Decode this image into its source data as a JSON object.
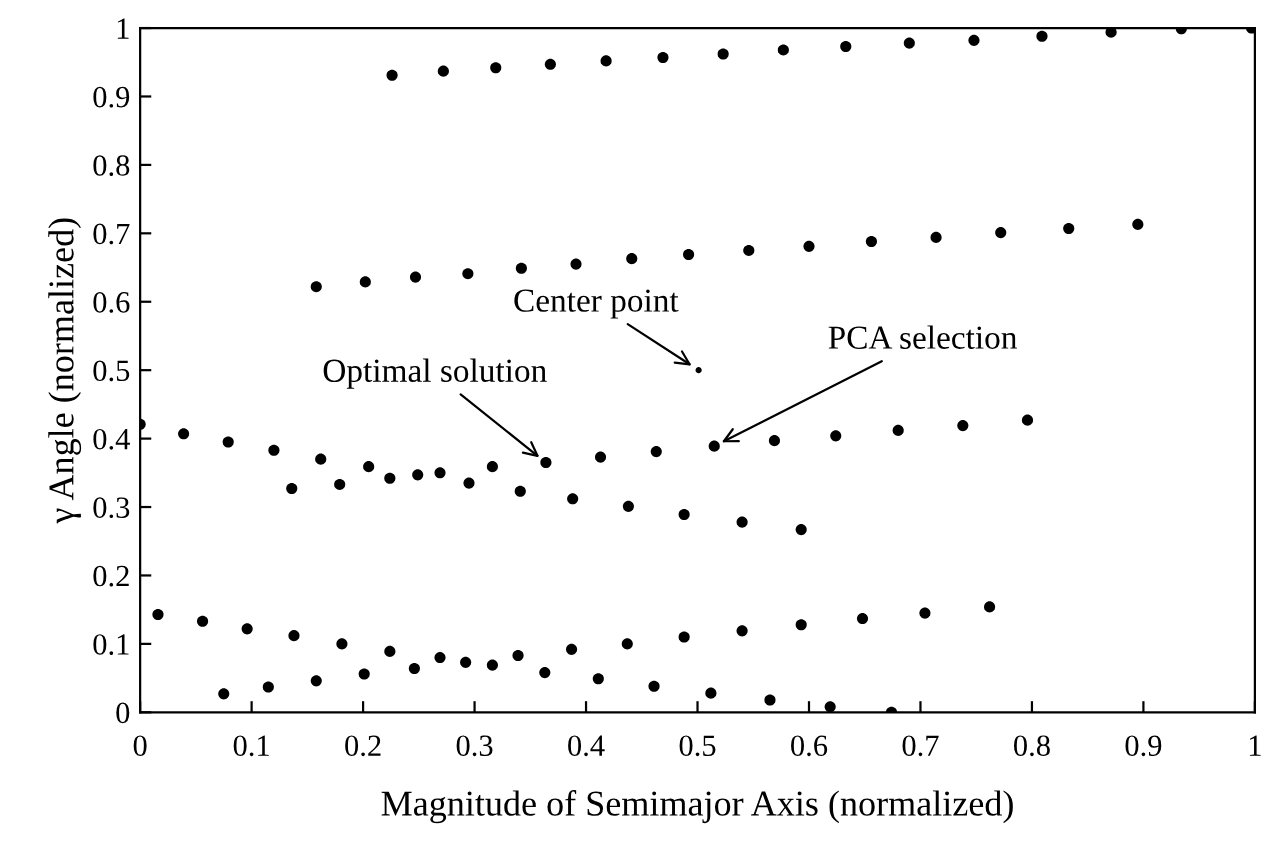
{
  "chart_data": {
    "type": "scatter",
    "xlabel": "Magnitude of Semimajor Axis (normalized)",
    "ylabel": "γ Angle (normalized)",
    "xlim": [
      0,
      1
    ],
    "ylim": [
      0,
      1
    ],
    "xticks": [
      0,
      0.1,
      0.2,
      0.3,
      0.4,
      0.5,
      0.6,
      0.7,
      0.8,
      0.9,
      1
    ],
    "yticks": [
      0,
      0.1,
      0.2,
      0.3,
      0.4,
      0.5,
      0.6,
      0.7,
      0.8,
      0.9,
      1
    ],
    "grid": false,
    "legend": false,
    "marker": "circle",
    "series": [
      {
        "color": "#000000",
        "x": [
          0.226,
          0.272,
          0.319,
          0.368,
          0.418,
          0.469,
          0.523,
          0.577,
          0.633,
          0.69,
          0.748,
          0.809,
          0.871,
          0.934,
          0.997
        ],
        "values": [
          0.931,
          0.937,
          0.942,
          0.947,
          0.952,
          0.957,
          0.962,
          0.968,
          0.973,
          0.978,
          0.982,
          0.988,
          0.994,
          0.999,
          1.0
        ]
      },
      {
        "color": "#000000",
        "x": [
          0.158,
          0.202,
          0.247,
          0.294,
          0.342,
          0.391,
          0.441,
          0.492,
          0.546,
          0.6,
          0.656,
          0.714,
          0.772,
          0.833,
          0.895
        ],
        "values": [
          0.622,
          0.629,
          0.636,
          0.641,
          0.649,
          0.655,
          0.663,
          0.669,
          0.675,
          0.681,
          0.688,
          0.694,
          0.701,
          0.707,
          0.713
        ]
      },
      {
        "color": "#000000",
        "x": [
          0.0,
          0.039,
          0.079,
          0.12,
          0.136,
          0.162,
          0.179,
          0.205,
          0.224,
          0.249,
          0.269,
          0.295,
          0.316,
          0.341,
          0.364,
          0.388,
          0.413,
          0.438,
          0.463,
          0.488,
          0.515,
          0.54,
          0.569,
          0.593,
          0.624,
          0.68,
          0.738,
          0.796
        ],
        "values": [
          0.421,
          0.407,
          0.395,
          0.383,
          0.327,
          0.37,
          0.333,
          0.359,
          0.342,
          0.347,
          0.35,
          0.335,
          0.359,
          0.323,
          0.365,
          0.312,
          0.373,
          0.301,
          0.381,
          0.289,
          0.389,
          0.278,
          0.397,
          0.267,
          0.404,
          0.412,
          0.419,
          0.427
        ]
      },
      {
        "color": "#000000",
        "x": [
          0.016,
          0.056,
          0.075,
          0.096,
          0.115,
          0.138,
          0.158,
          0.181,
          0.201,
          0.224,
          0.246,
          0.269,
          0.292,
          0.316,
          0.339,
          0.363,
          0.387,
          0.411,
          0.437,
          0.461,
          0.488,
          0.512,
          0.54,
          0.565,
          0.593,
          0.619,
          0.648,
          0.674,
          0.704,
          0.762
        ],
        "values": [
          0.143,
          0.133,
          0.027,
          0.122,
          0.037,
          0.112,
          0.046,
          0.1,
          0.056,
          0.089,
          0.064,
          0.08,
          0.073,
          0.069,
          0.083,
          0.058,
          0.092,
          0.049,
          0.1,
          0.038,
          0.11,
          0.028,
          0.119,
          0.018,
          0.128,
          0.008,
          0.137,
          0.0,
          0.145,
          0.154
        ]
      },
      {
        "color": "#000000",
        "x": [
          0.501
        ],
        "values": [
          0.5
        ]
      }
    ],
    "annotations": [
      {
        "text": "Center point",
        "x": 0.501,
        "y": 0.5
      },
      {
        "text": "Optimal solution",
        "x": 0.364,
        "y": 0.365
      },
      {
        "text": "PCA selection",
        "x": 0.515,
        "y": 0.389
      }
    ]
  }
}
